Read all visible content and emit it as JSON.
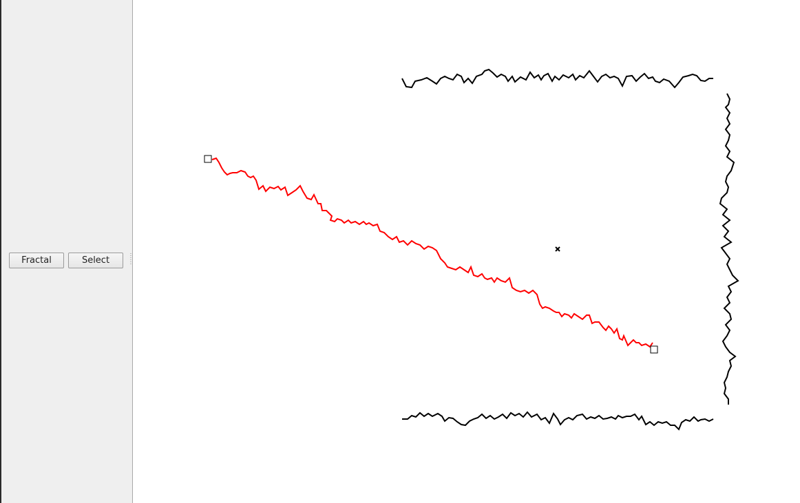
{
  "toolbar": {
    "fractal_label": "Fractal",
    "select_label": "Select"
  },
  "colors": {
    "panel_bg": "#efefef",
    "canvas_bg": "#ffffff",
    "frame_stroke": "#000000",
    "selected_stroke": "#ff0000"
  },
  "icons": {
    "center_marker": "x-mark-icon",
    "handles": "square-handle-icon"
  }
}
